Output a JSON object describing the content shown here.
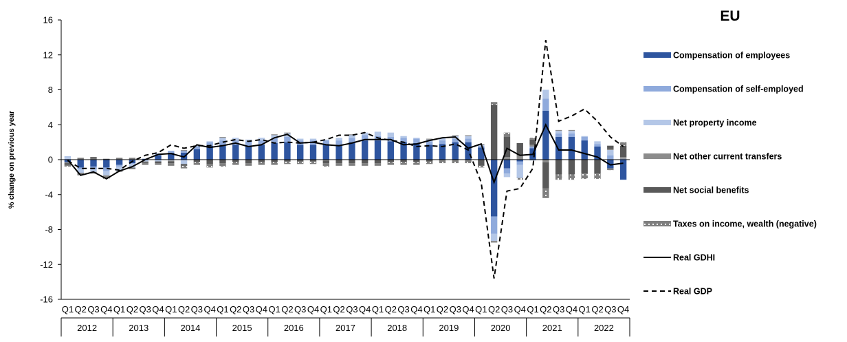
{
  "chart_data": {
    "type": "bar",
    "subtype": "stacked bar with lines",
    "title": "EU",
    "ylabel": "% change on previous year",
    "ylim": [
      -16,
      16
    ],
    "yticks": [
      -16,
      -12,
      -8,
      -4,
      0,
      4,
      8,
      12,
      16
    ],
    "grid": false,
    "legend_position": "right",
    "quarters": [
      "Q1",
      "Q2",
      "Q3",
      "Q4"
    ],
    "years": [
      "2012",
      "2013",
      "2014",
      "2015",
      "2016",
      "2017",
      "2018",
      "2019",
      "2020",
      "2021",
      "2022"
    ],
    "categories": [
      "2012Q1",
      "2012Q2",
      "2012Q3",
      "2012Q4",
      "2013Q1",
      "2013Q2",
      "2013Q3",
      "2013Q4",
      "2014Q1",
      "2014Q2",
      "2014Q3",
      "2014Q4",
      "2015Q1",
      "2015Q2",
      "2015Q3",
      "2015Q4",
      "2016Q1",
      "2016Q2",
      "2016Q3",
      "2016Q4",
      "2017Q1",
      "2017Q2",
      "2017Q3",
      "2017Q4",
      "2018Q1",
      "2018Q2",
      "2018Q3",
      "2018Q4",
      "2019Q1",
      "2019Q2",
      "2019Q3",
      "2019Q4",
      "2020Q1",
      "2020Q2",
      "2020Q3",
      "2020Q4",
      "2021Q1",
      "2021Q2",
      "2021Q3",
      "2021Q4",
      "2022Q1",
      "2022Q2",
      "2022Q3",
      "2022Q4"
    ],
    "bar_series": [
      {
        "name": "Compensation of employees",
        "color": "#2e559f",
        "values": [
          -0.3,
          -0.9,
          -0.8,
          -0.9,
          -0.6,
          -0.4,
          0.1,
          0.5,
          0.8,
          0.8,
          1.2,
          1.6,
          1.7,
          1.7,
          1.6,
          1.7,
          1.9,
          2.0,
          1.7,
          1.7,
          1.7,
          1.7,
          2.0,
          2.2,
          2.2,
          2.1,
          2.0,
          1.9,
          1.7,
          1.8,
          2.0,
          2.0,
          1.4,
          -6.5,
          -1.0,
          -0.2,
          1.3,
          5.6,
          2.6,
          2.6,
          2.2,
          1.5,
          -1.0,
          -2.3
        ]
      },
      {
        "name": "Compensation of self-employed",
        "color": "#8faadc",
        "values": [
          0.1,
          -0.2,
          -0.3,
          -0.4,
          -0.2,
          -0.1,
          0.0,
          0.2,
          0.2,
          0.2,
          0.3,
          0.4,
          0.5,
          0.5,
          0.5,
          0.5,
          0.6,
          0.6,
          0.5,
          0.5,
          0.5,
          0.5,
          0.5,
          0.6,
          0.5,
          0.5,
          0.5,
          0.5,
          0.4,
          0.4,
          0.4,
          0.4,
          0.2,
          -2.0,
          -0.6,
          -0.4,
          0.2,
          1.4,
          0.4,
          0.4,
          0.4,
          0.3,
          0.5,
          0.1
        ]
      },
      {
        "name": "Net property income",
        "color": "#b4c7e7",
        "values": [
          0.3,
          -0.4,
          -0.3,
          -0.5,
          -0.5,
          -0.4,
          -0.2,
          -0.2,
          -0.1,
          -0.5,
          0.1,
          0.1,
          0.3,
          0.3,
          0.2,
          0.3,
          0.3,
          0.4,
          0.2,
          0.2,
          0.1,
          0.3,
          0.3,
          0.3,
          0.5,
          0.5,
          0.2,
          0.1,
          0.2,
          0.3,
          0.3,
          0.3,
          0.1,
          -0.8,
          -0.4,
          -1.5,
          -0.1,
          1.0,
          0.3,
          0.3,
          0.1,
          0.3,
          0.6,
          0.0
        ]
      },
      {
        "name": "Net other current transfers",
        "color": "#8c8c8c",
        "values": [
          -0.1,
          0.1,
          0.1,
          -0.1,
          0.1,
          0.1,
          -0.1,
          0.0,
          -0.1,
          0.1,
          0.0,
          0.0,
          0.1,
          0.0,
          0.0,
          0.0,
          0.1,
          0.1,
          0.0,
          0.0,
          -0.1,
          0.0,
          0.1,
          0.0,
          0.0,
          0.0,
          0.0,
          0.0,
          0.1,
          0.0,
          0.1,
          0.1,
          0.1,
          -0.2,
          0.3,
          0.5,
          0.2,
          -0.3,
          0.1,
          0.1,
          0.0,
          0.0,
          0.1,
          0.2
        ]
      },
      {
        "name": "Net social benefits",
        "color": "#595959",
        "values": [
          -0.2,
          0.1,
          0.2,
          0.1,
          0.1,
          0.1,
          -0.1,
          -0.2,
          -0.2,
          -0.2,
          -0.3,
          -0.5,
          -0.4,
          -0.3,
          -0.4,
          -0.3,
          -0.3,
          -0.2,
          -0.2,
          -0.2,
          -0.3,
          -0.4,
          -0.4,
          -0.4,
          -0.4,
          -0.3,
          -0.3,
          -0.3,
          -0.2,
          -0.1,
          -0.1,
          -0.1,
          -0.7,
          6.3,
          2.3,
          1.4,
          0.6,
          -3.0,
          -1.7,
          -1.7,
          -1.6,
          -1.6,
          0.4,
          1.3
        ]
      },
      {
        "name": "Taxes on income, wealth (negative)",
        "color": "#7f7f7f",
        "pattern": "dotted",
        "values": [
          -0.2,
          -0.3,
          -0.2,
          -0.3,
          -0.1,
          -0.2,
          -0.2,
          -0.2,
          -0.3,
          -0.3,
          -0.3,
          -0.4,
          -0.4,
          -0.3,
          -0.3,
          -0.3,
          -0.3,
          -0.3,
          -0.3,
          -0.3,
          -0.4,
          -0.3,
          -0.3,
          -0.3,
          -0.3,
          -0.3,
          -0.3,
          -0.3,
          -0.3,
          -0.3,
          -0.3,
          -0.3,
          -0.2,
          0.3,
          0.5,
          -0.2,
          0.2,
          -1.1,
          -0.6,
          -0.6,
          -0.6,
          -0.6,
          -0.2,
          0.4
        ]
      }
    ],
    "line_series": [
      {
        "name": "Real GDHI",
        "color": "#000000",
        "style": "solid",
        "values": [
          0.0,
          -1.8,
          -1.4,
          -2.2,
          -1.3,
          -0.8,
          0.0,
          0.6,
          0.7,
          0.3,
          1.7,
          1.4,
          1.6,
          1.9,
          1.5,
          1.7,
          2.5,
          2.9,
          1.9,
          2.0,
          1.7,
          1.6,
          1.9,
          2.3,
          2.3,
          2.3,
          1.7,
          1.8,
          2.2,
          2.5,
          2.6,
          1.3,
          1.8,
          -2.6,
          1.3,
          0.5,
          0.6,
          4.0,
          1.1,
          1.1,
          0.7,
          0.3,
          -0.6,
          -0.4
        ]
      },
      {
        "name": "Real GDP",
        "color": "#000000",
        "style": "dashed",
        "values": [
          -0.1,
          -1.0,
          -1.0,
          -1.0,
          -1.2,
          -0.2,
          0.5,
          0.8,
          1.7,
          1.3,
          1.6,
          1.6,
          2.0,
          2.3,
          2.1,
          2.3,
          1.9,
          2.0,
          1.9,
          2.0,
          2.3,
          2.8,
          2.8,
          3.1,
          2.5,
          2.2,
          2.0,
          1.5,
          1.6,
          1.5,
          1.8,
          1.1,
          -2.6,
          -13.6,
          -3.6,
          -3.3,
          -1.0,
          13.7,
          4.4,
          5.0,
          5.8,
          4.4,
          2.6,
          1.5
        ]
      }
    ]
  }
}
